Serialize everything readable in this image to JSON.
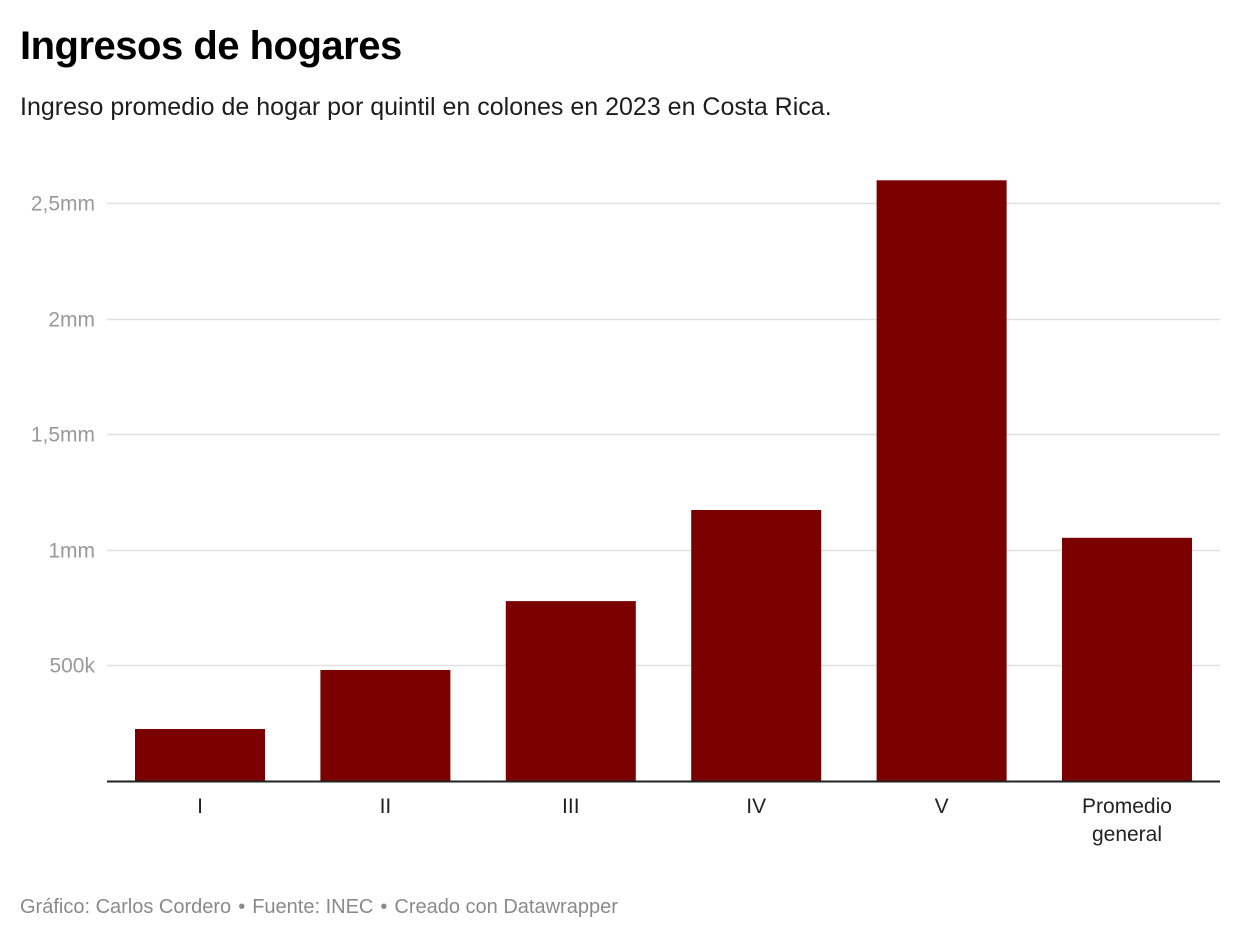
{
  "title": "Ingresos de hogares",
  "subtitle": "Ingreso promedio de hogar por quintil en colones en 2023 en Costa Rica.",
  "footer": {
    "credit": "Gráfico: Carlos Cordero",
    "source": "Fuente: INEC",
    "tool": "Creado con Datawrapper",
    "separator": "•"
  },
  "colors": {
    "bar": "#7b0000",
    "grid": "#e0e0e0",
    "axis": "#222222",
    "tick_label": "#999999",
    "category_label": "#222222"
  },
  "chart_data": {
    "type": "bar",
    "categories": [
      [
        "I"
      ],
      [
        "II"
      ],
      [
        "III"
      ],
      [
        "IV"
      ],
      [
        "V"
      ],
      [
        "Promedio",
        "general"
      ]
    ],
    "values": [
      225000,
      480000,
      778000,
      1172000,
      2598000,
      1052000
    ],
    "y_ticks": [
      {
        "value": 500000,
        "label": "500k"
      },
      {
        "value": 1000000,
        "label": "1mm"
      },
      {
        "value": 1500000,
        "label": "1,5mm"
      },
      {
        "value": 2000000,
        "label": "2mm"
      },
      {
        "value": 2500000,
        "label": "2,5mm"
      }
    ],
    "ylim": [
      0,
      2600000
    ],
    "grid": true,
    "legend": "none"
  }
}
